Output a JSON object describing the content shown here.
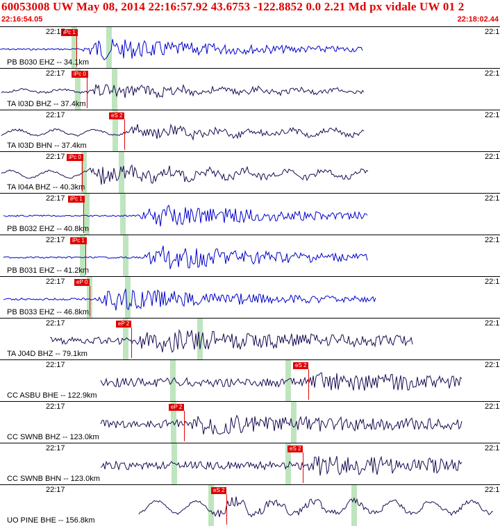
{
  "header": {
    "title": "60053008 UW May 08, 2014 22:16:57.92    43.6753 -122.8852  0.0 2.21 Md px vidale UW 01    2",
    "start_time": "22:16:54.05",
    "end_time": "22:18:02.44"
  },
  "panels": [
    {
      "time_left": "22:17",
      "time_right": "22:1",
      "channel": "PB B030 EHZ -- 34.1km",
      "pick": "iPc 1",
      "color": "#0000cc"
    },
    {
      "time_left": "22:17",
      "time_right": "22:1",
      "channel": "TA I03D BHZ -- 37.4km",
      "pick": "iPc 0",
      "color": "#1a0a50"
    },
    {
      "time_left": "22:17",
      "time_right": "22:1",
      "channel": "TA I03D BHN -- 37.4km",
      "pick": "eS 2",
      "color": "#1a0a50"
    },
    {
      "time_left": "22:17",
      "time_right": "22:1",
      "channel": "TA I04A BHZ -- 40.3km",
      "pick": "iPc 0",
      "color": "#1a0a50"
    },
    {
      "time_left": "22:17",
      "time_right": "22:1",
      "channel": "PB B032 EHZ -- 40.8km",
      "pick": "iPc 1",
      "color": "#0000cc"
    },
    {
      "time_left": "22:17",
      "time_right": "22:1",
      "channel": "PB B031 EHZ -- 41.2km",
      "pick": "iPc 1",
      "color": "#0000cc"
    },
    {
      "time_left": "22:17",
      "time_right": "22:1",
      "channel": "PB B033 EHZ -- 46.8km",
      "pick": "eP 0",
      "color": "#0000cc"
    },
    {
      "time_left": "22:17",
      "time_right": "22:1",
      "channel": "TA J04D BHZ -- 79.1km",
      "pick": "eP 2",
      "color": "#1a0a50"
    },
    {
      "time_left": "22:17",
      "time_right": "22:1",
      "channel": "CC ASBU BHE -- 122.9km",
      "pick": "eS 2",
      "color": "#1a0a50"
    },
    {
      "time_left": "22:17",
      "time_right": "22:1",
      "channel": "CC SWNB BHZ -- 123.0km",
      "pick": "eP 2",
      "color": "#1a0a50"
    },
    {
      "time_left": "22:17",
      "time_right": "22:1",
      "channel": "CC SWNB BHN -- 123.0km",
      "pick": "eS 2",
      "color": "#1a0a50"
    },
    {
      "time_left": "22:17",
      "time_right": "22:1",
      "channel": "UO PINE BHE -- 156.8km",
      "pick": "eS 2",
      "color": "#1a0a50"
    }
  ],
  "colors": {
    "header_red": "#e00000",
    "pick_red": "#e00000",
    "phase_band": "#a8dca8"
  }
}
